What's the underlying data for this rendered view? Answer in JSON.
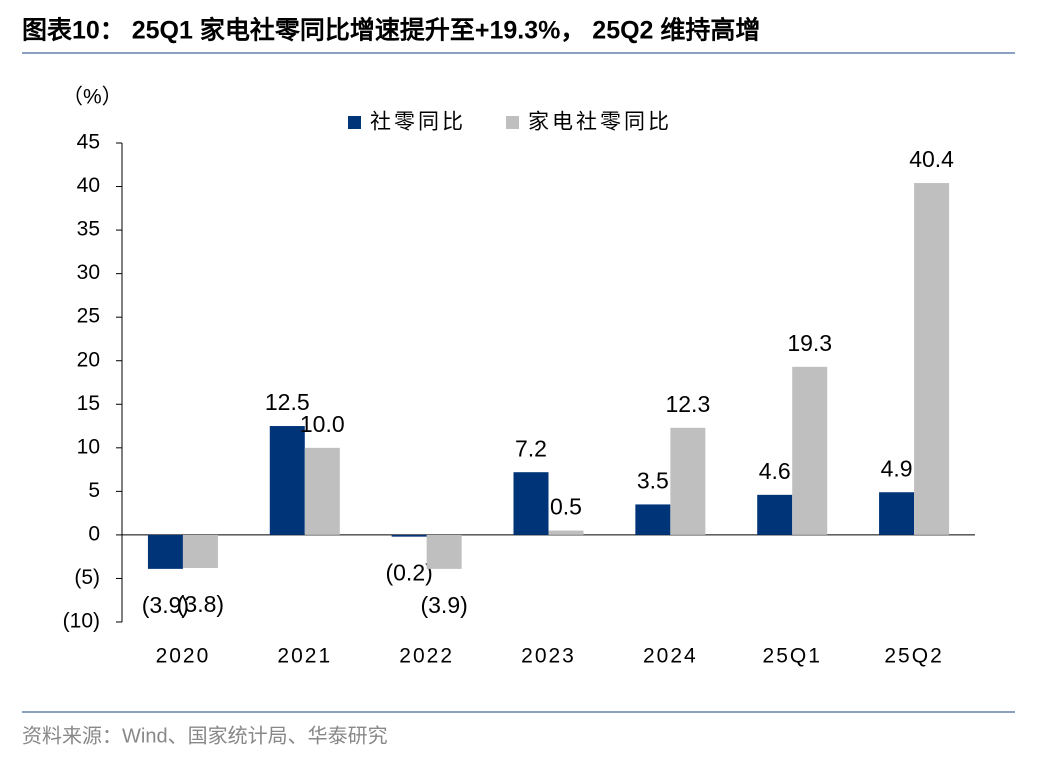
{
  "chart_data": {
    "type": "bar",
    "title": "图表10： 25Q1 家电社零同比增速提升至+19.3%， 25Q2 维持高增",
    "y_label": "（%）",
    "source": "资料来源：Wind、国家统计局、华泰研究",
    "categories": [
      "2020",
      "2021",
      "2022",
      "2023",
      "2024",
      "25Q1",
      "25Q2"
    ],
    "series": [
      {
        "name": "社零同比",
        "color": "#003479",
        "values": [
          -3.9,
          12.5,
          -0.2,
          7.2,
          3.5,
          4.6,
          4.9
        ],
        "value_labels": [
          "(3.9)",
          "12.5",
          "(0.2)",
          "7.2",
          "3.5",
          "4.6",
          "4.9"
        ]
      },
      {
        "name": "家电社零同比",
        "color": "#bfbfbf",
        "values": [
          -3.8,
          10.0,
          -3.9,
          0.5,
          12.3,
          19.3,
          40.4
        ],
        "value_labels": [
          "(3.8)",
          "10.0",
          "(3.9)",
          "0.5",
          "12.3",
          "19.3",
          "40.4"
        ]
      }
    ],
    "ylim": [
      -10,
      45
    ],
    "yticks": [
      {
        "value": -10,
        "label": "(10)"
      },
      {
        "value": -5,
        "label": "(5)"
      },
      0,
      5,
      10,
      15,
      20,
      25,
      30,
      35,
      40,
      45
    ],
    "legend": "top"
  }
}
